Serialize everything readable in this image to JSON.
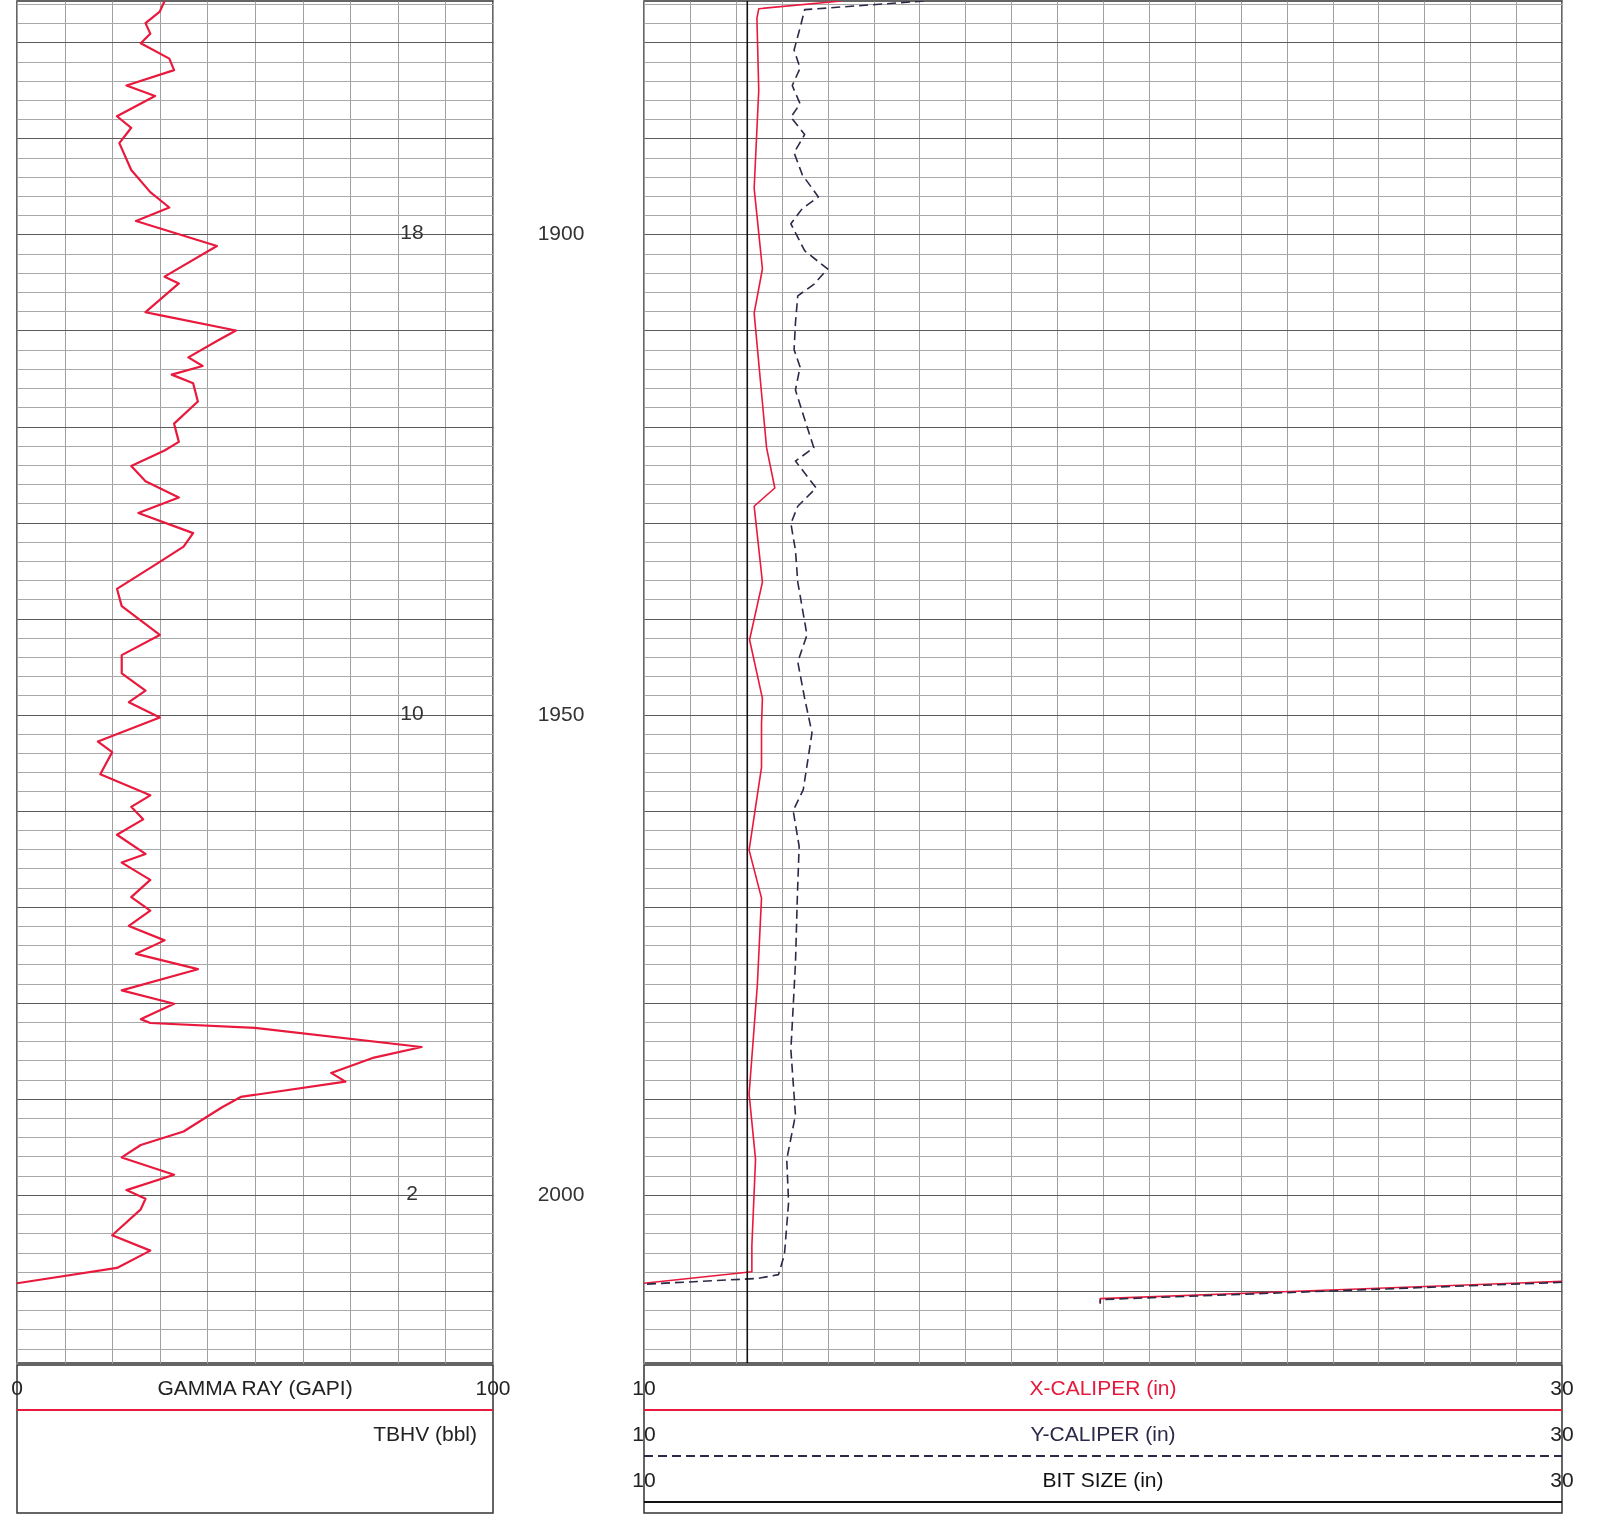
{
  "chart_data": [
    {
      "type": "line",
      "xlabel": "GAMMA RAY (GAPI)",
      "xlim": [
        0,
        100
      ],
      "xticks": [
        0,
        {
          "value": 10,
          "label": null
        },
        {
          "value": 20,
          "label": null
        },
        {
          "value": 30,
          "label": null
        },
        {
          "value": 40,
          "label": null
        },
        {
          "value": 50,
          "label": null
        },
        {
          "value": 60,
          "label": null
        },
        {
          "value": 70,
          "label": null
        },
        {
          "value": 80,
          "label": null
        },
        {
          "value": 90,
          "label": null
        },
        100
      ],
      "ylim": [
        2017.5,
        1875.7
      ],
      "yticks": [
        {
          "value": 1876,
          "label": null
        },
        {
          "value": 1878,
          "label": null
        },
        {
          "value": 1880,
          "label": null
        },
        {
          "value": 1882,
          "label": null
        },
        {
          "value": 1884,
          "label": null
        },
        {
          "value": 1886,
          "label": null
        },
        {
          "value": 1888,
          "label": null
        },
        {
          "value": 1890,
          "label": null
        },
        {
          "value": 1892,
          "label": null
        },
        {
          "value": 1894,
          "label": null
        },
        {
          "value": 1896,
          "label": null
        },
        {
          "value": 1898,
          "label": null
        },
        1900,
        {
          "value": 1902,
          "label": null
        },
        {
          "value": 1904,
          "label": null
        },
        {
          "value": 1906,
          "label": null
        },
        {
          "value": 1908,
          "label": null
        },
        {
          "value": 1910,
          "label": null
        },
        {
          "value": 1912,
          "label": null
        },
        {
          "value": 1914,
          "label": null
        },
        {
          "value": 1916,
          "label": null
        },
        {
          "value": 1918,
          "label": null
        },
        {
          "value": 1920,
          "label": null
        },
        {
          "value": 1922,
          "label": null
        },
        {
          "value": 1924,
          "label": null
        },
        {
          "value": 1926,
          "label": null
        },
        {
          "value": 1928,
          "label": null
        },
        {
          "value": 1930,
          "label": null
        },
        {
          "value": 1932,
          "label": null
        },
        {
          "value": 1934,
          "label": null
        },
        {
          "value": 1936,
          "label": null
        },
        {
          "value": 1938,
          "label": null
        },
        {
          "value": 1940,
          "label": null
        },
        {
          "value": 1942,
          "label": null
        },
        {
          "value": 1944,
          "label": null
        },
        {
          "value": 1946,
          "label": null
        },
        {
          "value": 1948,
          "label": null
        },
        1950,
        {
          "value": 1952,
          "label": null
        },
        {
          "value": 1954,
          "label": null
        },
        {
          "value": 1956,
          "label": null
        },
        {
          "value": 1958,
          "label": null
        },
        {
          "value": 1960,
          "label": null
        },
        {
          "value": 1962,
          "label": null
        },
        {
          "value": 1964,
          "label": null
        },
        {
          "value": 1966,
          "label": null
        },
        {
          "value": 1968,
          "label": null
        },
        {
          "value": 1970,
          "label": null
        },
        {
          "value": 1972,
          "label": null
        },
        {
          "value": 1974,
          "label": null
        },
        {
          "value": 1976,
          "label": null
        },
        {
          "value": 1978,
          "label": null
        },
        {
          "value": 1980,
          "label": null
        },
        {
          "value": 1982,
          "label": null
        },
        {
          "value": 1984,
          "label": null
        },
        {
          "value": 1986,
          "label": null
        },
        {
          "value": 1988,
          "label": null
        },
        {
          "value": 1990,
          "label": null
        },
        {
          "value": 1992,
          "label": null
        },
        {
          "value": 1994,
          "label": null
        },
        {
          "value": 1996,
          "label": null
        },
        {
          "value": 1998,
          "label": null
        },
        2000,
        {
          "value": 2002,
          "label": null
        },
        {
          "value": 2004,
          "label": null
        },
        {
          "value": 2006,
          "label": null
        },
        {
          "value": 2008,
          "label": null
        },
        {
          "value": 2010,
          "label": null
        },
        {
          "value": 2012,
          "label": null
        },
        {
          "value": 2014,
          "label": null
        },
        {
          "value": 2016,
          "label": null
        }
      ],
      "tick_labels": "x",
      "grid": true,
      "series": [
        {
          "color": "#e8193c",
          "x": [
            31,
            30,
            27,
            28,
            26,
            32,
            33,
            23,
            29,
            21,
            24,
            21.5,
            24,
            28,
            32,
            25,
            42,
            31,
            34,
            27,
            30,
            46,
            42,
            36,
            39,
            32.5,
            37,
            38,
            33,
            34,
            31,
            24,
            27,
            34,
            25.5,
            37,
            35,
            30,
            21,
            22,
            30,
            22,
            22,
            27,
            23.5,
            30,
            17,
            20,
            17.5,
            28,
            24,
            26.5,
            21,
            27,
            22,
            28,
            24,
            28,
            23.5,
            31,
            25,
            38,
            22,
            33,
            26,
            28,
            50,
            85,
            75,
            66,
            69,
            47,
            43,
            35,
            26,
            22,
            33,
            23,
            27,
            26,
            20,
            28,
            21,
            0
          ],
          "values": [
            1875.7,
            1876.8,
            1878,
            1879.1,
            1880.1,
            1881.7,
            1882.9,
            1884.5,
            1885.6,
            1887.7,
            1888.9,
            1890.5,
            1893.3,
            1895.6,
            1897.2,
            1898.6,
            1901.2,
            1904.4,
            1905.1,
            1908.1,
            1908.4,
            1910,
            1911.1,
            1912.8,
            1913.7,
            1914.6,
            1915.5,
            1917.4,
            1919.7,
            1921.6,
            1922.5,
            1924.1,
            1925.7,
            1927.4,
            1929,
            1931.1,
            1932.5,
            1934.1,
            1936.9,
            1938.7,
            1941.7,
            1943.8,
            1945.7,
            1947.5,
            1948.7,
            1950.3,
            1952.8,
            1953.9,
            1956.2,
            1958.4,
            1959.6,
            1960.9,
            1962.5,
            1964.5,
            1965.4,
            1967.2,
            1969,
            1970.4,
            1972,
            1973.5,
            1974.9,
            1976.5,
            1978.7,
            1980.1,
            1981.7,
            1982.1,
            1982.6,
            1984.6,
            1985.7,
            1987.3,
            1988.2,
            1989.8,
            1990.9,
            1993.4,
            1994.8,
            1996.1,
            1997.9,
            1999.5,
            2000.4,
            2001.5,
            2004.2,
            2005.8,
            2007.6,
            2009.2
          ]
        }
      ],
      "annotations": [
        "18",
        "10",
        "2",
        "TBHV (bbl)"
      ]
    },
    {
      "type": "line",
      "xlim": [
        10,
        30
      ],
      "xticks": [
        10,
        {
          "value": 11,
          "label": null
        },
        {
          "value": 12,
          "label": null
        },
        {
          "value": 13,
          "label": null
        },
        {
          "value": 14,
          "label": null
        },
        {
          "value": 15,
          "label": null
        },
        {
          "value": 16,
          "label": null
        },
        {
          "value": 17,
          "label": null
        },
        {
          "value": 18,
          "label": null
        },
        {
          "value": 19,
          "label": null
        },
        {
          "value": 20,
          "label": null
        },
        {
          "value": 21,
          "label": null
        },
        {
          "value": 22,
          "label": null
        },
        {
          "value": 23,
          "label": null
        },
        {
          "value": 24,
          "label": null
        },
        {
          "value": 25,
          "label": null
        },
        {
          "value": 26,
          "label": null
        },
        {
          "value": 27,
          "label": null
        },
        {
          "value": 28,
          "label": null
        },
        {
          "value": 29,
          "label": null
        },
        30
      ],
      "ylim": [
        2017.5,
        1875.7
      ],
      "yticks": [
        {
          "value": 1876,
          "label": null
        },
        {
          "value": 1878,
          "label": null
        },
        {
          "value": 1880,
          "label": null
        },
        {
          "value": 1882,
          "label": null
        },
        {
          "value": 1884,
          "label": null
        },
        {
          "value": 1886,
          "label": null
        },
        {
          "value": 1888,
          "label": null
        },
        {
          "value": 1890,
          "label": null
        },
        {
          "value": 1892,
          "label": null
        },
        {
          "value": 1894,
          "label": null
        },
        {
          "value": 1896,
          "label": null
        },
        {
          "value": 1898,
          "label": null
        },
        1900,
        {
          "value": 1902,
          "label": null
        },
        {
          "value": 1904,
          "label": null
        },
        {
          "value": 1906,
          "label": null
        },
        {
          "value": 1908,
          "label": null
        },
        {
          "value": 1910,
          "label": null
        },
        {
          "value": 1912,
          "label": null
        },
        {
          "value": 1914,
          "label": null
        },
        {
          "value": 1916,
          "label": null
        },
        {
          "value": 1918,
          "label": null
        },
        {
          "value": 1920,
          "label": null
        },
        {
          "value": 1922,
          "label": null
        },
        {
          "value": 1924,
          "label": null
        },
        {
          "value": 1926,
          "label": null
        },
        {
          "value": 1928,
          "label": null
        },
        {
          "value": 1930,
          "label": null
        },
        {
          "value": 1932,
          "label": null
        },
        {
          "value": 1934,
          "label": null
        },
        {
          "value": 1936,
          "label": null
        },
        {
          "value": 1938,
          "label": null
        },
        {
          "value": 1940,
          "label": null
        },
        {
          "value": 1942,
          "label": null
        },
        {
          "value": 1944,
          "label": null
        },
        {
          "value": 1946,
          "label": null
        },
        {
          "value": 1948,
          "label": null
        },
        1950,
        {
          "value": 1952,
          "label": null
        },
        {
          "value": 1954,
          "label": null
        },
        {
          "value": 1956,
          "label": null
        },
        {
          "value": 1958,
          "label": null
        },
        {
          "value": 1960,
          "label": null
        },
        {
          "value": 1962,
          "label": null
        },
        {
          "value": 1964,
          "label": null
        },
        {
          "value": 1966,
          "label": null
        },
        {
          "value": 1968,
          "label": null
        },
        {
          "value": 1970,
          "label": null
        },
        {
          "value": 1972,
          "label": null
        },
        {
          "value": 1974,
          "label": null
        },
        {
          "value": 1976,
          "label": null
        },
        {
          "value": 1978,
          "label": null
        },
        {
          "value": 1980,
          "label": null
        },
        {
          "value": 1982,
          "label": null
        },
        {
          "value": 1984,
          "label": null
        },
        {
          "value": 1986,
          "label": null
        },
        {
          "value": 1988,
          "label": null
        },
        {
          "value": 1990,
          "label": null
        },
        {
          "value": 1992,
          "label": null
        },
        {
          "value": 1994,
          "label": null
        },
        {
          "value": 1996,
          "label": null
        },
        {
          "value": 1998,
          "label": null
        },
        2000,
        {
          "value": 2002,
          "label": null
        },
        {
          "value": 2004,
          "label": null
        },
        {
          "value": 2006,
          "label": null
        },
        {
          "value": 2008,
          "label": null
        },
        {
          "value": 2010,
          "label": null
        },
        {
          "value": 2012,
          "label": null
        },
        {
          "value": 2014,
          "label": null
        },
        {
          "value": 2016,
          "label": null
        }
      ],
      "grid": true,
      "legend": "bottom",
      "annotations": [
        "10",
        "30",
        "10",
        "30"
      ],
      "series": [
        {
          "name": "X-CALIPER (in)",
          "color": "#e8193c",
          "line_style": "solid",
          "x": [
            14.3,
            12.5,
            12.46,
            12.5,
            12.4,
            12.58,
            12.4,
            12.58,
            12.67,
            12.85,
            12.4,
            12.58,
            12.3,
            12.58,
            12.56,
            12.56,
            12.29,
            12.56,
            12.47,
            12.29,
            12.43,
            12.35,
            12.35,
            10,
            null,
            30,
            19.94,
            19.94
          ],
          "values": [
            1875.7,
            1876.5,
            1877.5,
            1885,
            1895.2,
            1903.6,
            1908.2,
            1917.5,
            1922.2,
            1926.4,
            1928.3,
            1936.2,
            1942.2,
            1948.3,
            1951,
            1955.5,
            1964.1,
            1969.1,
            1978.1,
            1989.5,
            1996.3,
            2005.3,
            2008,
            2009.2,
            null,
            2009,
            2010.8,
            2011.3
          ]
        },
        {
          "name": "Y-CALIPER (in)",
          "color": "#2a2a48",
          "line_style": "dashed",
          "x": [
            16.1,
            13.5,
            13.4,
            13.27,
            13.4,
            13.23,
            13.4,
            13.2,
            13.5,
            13.27,
            13.45,
            13.8,
            13.45,
            13.2,
            13.5,
            14,
            13.7,
            13.35,
            13.3,
            13.27,
            13.4,
            13.3,
            13.45,
            13.7,
            13.3,
            13.75,
            13.35,
            13.2,
            13.3,
            13.35,
            13.55,
            13.35,
            13.5,
            13.66,
            13.47,
            13.25,
            13.38,
            13.34,
            13.3,
            13.2,
            13.3,
            13.11,
            13.15,
            13.06,
            12.93,
            12.47,
            10,
            null,
            30,
            19.94,
            19.94
          ],
          "values": [
            1875.7,
            1876.6,
            1878.5,
            1880.8,
            1882.7,
            1884.5,
            1886.4,
            1887.8,
            1889.6,
            1891.5,
            1893.8,
            1896.1,
            1897.3,
            1898.9,
            1901.7,
            1903.6,
            1905.2,
            1906.4,
            1909.2,
            1912,
            1913.8,
            1916.2,
            1918.5,
            1922.2,
            1923.6,
            1926.4,
            1928.3,
            1930.1,
            1932.9,
            1936.2,
            1941.7,
            1944.5,
            1948.3,
            1951.9,
            1957.8,
            1960,
            1963.7,
            1969.1,
            1975.9,
            1984.9,
            1991.7,
            1996.3,
            2000.8,
            2006.2,
            2008.3,
            2008.7,
            2009.3,
            null,
            2009.1,
            2010.9,
            2011.3
          ]
        },
        {
          "name": "BIT SIZE (in)",
          "color": "#111111",
          "line_style": "solid",
          "x": [
            12.25,
            12.25
          ],
          "values": [
            1875.7,
            2017.5
          ]
        }
      ]
    }
  ]
}
